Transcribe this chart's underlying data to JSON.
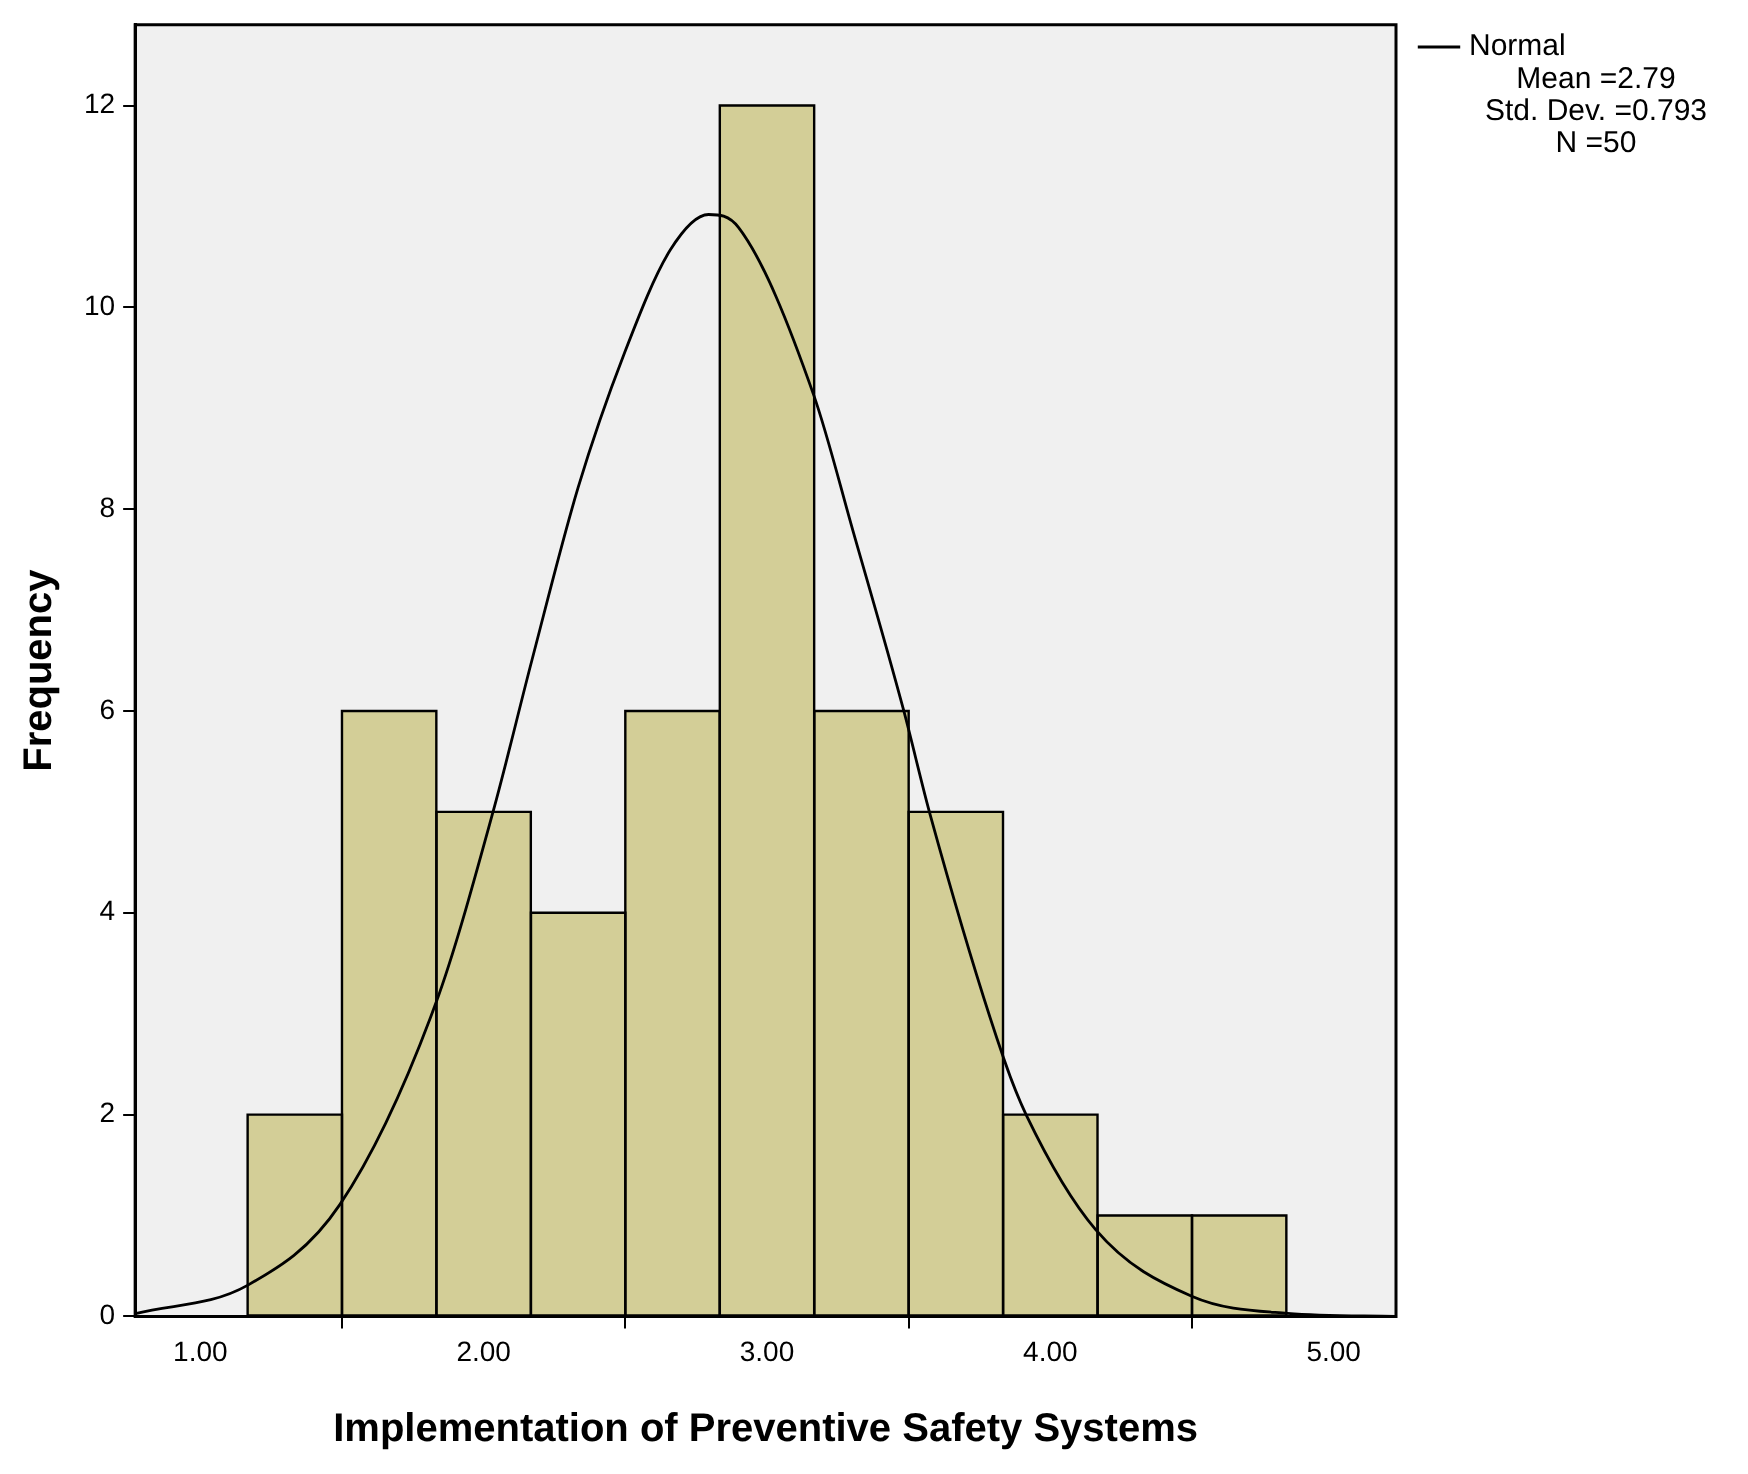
{
  "chart_data": {
    "type": "histogram",
    "xlabel": "Implementation of Preventive Safety Systems",
    "ylabel": "Frequency",
    "bins": [
      1.167,
      1.5,
      1.833,
      2.167,
      2.5,
      2.833,
      3.167,
      3.5,
      3.833,
      4.167,
      4.5,
      4.833
    ],
    "values": [
      2,
      6,
      5,
      4,
      6,
      12,
      6,
      5,
      2,
      1,
      1
    ],
    "color": "#d3ce97",
    "xlim": [
      0.77,
      5.22
    ],
    "ylim": [
      0,
      12.8
    ],
    "xticks": [
      {
        "value": 1,
        "label": "1.00"
      },
      {
        "value": 2,
        "label": "2.00"
      },
      {
        "value": 3,
        "label": "3.00"
      },
      {
        "value": 4,
        "label": "4.00"
      },
      {
        "value": 5,
        "label": "5.00"
      }
    ],
    "yticks": [
      0,
      2,
      4,
      6,
      8,
      10,
      12
    ],
    "legend": "top right",
    "marker": "none",
    "annotations": [
      "Mean =2.79",
      "Std. Dev. =0.793",
      "N =50"
    ],
    "series": [
      {
        "name": "Normal",
        "type": "line",
        "color": "#000000",
        "x": [
          0.775,
          1.168,
          1.493,
          1.832,
          2.035,
          2.171,
          2.333,
          2.496,
          2.659,
          2.794,
          2.9,
          3.165,
          3.306,
          3.482,
          3.577,
          3.835,
          3.916,
          4.16,
          4.499,
          4.837,
          5.217
        ],
        "values": [
          0.03,
          0.31,
          1.11,
          3.11,
          5.02,
          6.51,
          8.21,
          9.54,
          10.57,
          10.92,
          10.79,
          9.13,
          7.76,
          6.01,
          4.96,
          2.56,
          1.99,
          0.86,
          0.2,
          0.03,
          0
        ]
      }
    ]
  }
}
